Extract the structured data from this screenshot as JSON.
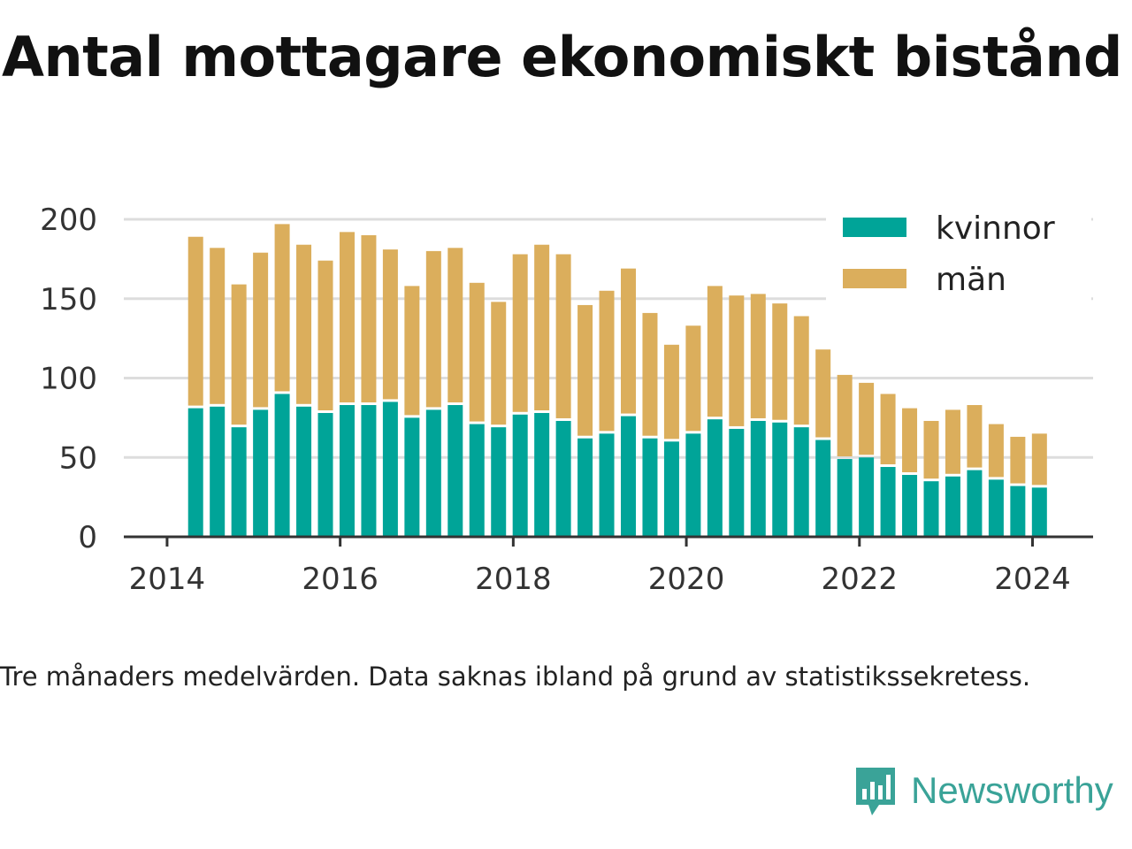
{
  "header": {
    "title": "Antal mottagare ekonomiskt bistånd"
  },
  "caption": "Tre månaders medelvärden. Data saknas ibland på grund av statistikssekretess.",
  "brand": {
    "name": "Newsworthy",
    "icon": "newsworthy-logo-icon",
    "color": "#3aa398"
  },
  "chart_data": {
    "type": "bar",
    "stacked": true,
    "xlabel": "",
    "ylabel": "",
    "ylim": [
      0,
      200
    ],
    "yticks": [
      0,
      50,
      100,
      150,
      200
    ],
    "xticks": [
      "2014",
      "2016",
      "2018",
      "2020",
      "2022",
      "2024"
    ],
    "xlim": [
      2013.5,
      2024.7
    ],
    "grid": true,
    "legend": "top-right",
    "x": [
      2014.33,
      2014.58,
      2014.83,
      2015.08,
      2015.33,
      2015.58,
      2015.83,
      2016.08,
      2016.33,
      2016.58,
      2016.83,
      2017.08,
      2017.33,
      2017.58,
      2017.83,
      2018.08,
      2018.33,
      2018.58,
      2018.83,
      2019.08,
      2019.33,
      2019.58,
      2019.83,
      2020.08,
      2020.33,
      2020.58,
      2020.83,
      2021.08,
      2021.33,
      2021.58,
      2021.83,
      2022.08,
      2022.33,
      2022.58,
      2022.83,
      2023.08,
      2023.33,
      2023.58,
      2023.83,
      2024.08
    ],
    "series": [
      {
        "name": "kvinnor",
        "color": "#00a498",
        "values": [
          81,
          82,
          69,
          80,
          90,
          82,
          78,
          83,
          83,
          85,
          75,
          80,
          83,
          71,
          69,
          77,
          78,
          73,
          62,
          65,
          76,
          62,
          60,
          65,
          74,
          68,
          73,
          72,
          69,
          61,
          49,
          50,
          44,
          39,
          35,
          38,
          42,
          36,
          32,
          31
        ]
      },
      {
        "name": "män",
        "color": "#dbae5c",
        "values": [
          108,
          100,
          90,
          99,
          107,
          102,
          96,
          109,
          107,
          96,
          83,
          100,
          99,
          89,
          79,
          101,
          106,
          105,
          84,
          90,
          93,
          79,
          61,
          68,
          84,
          84,
          80,
          75,
          70,
          57,
          53,
          47,
          46,
          42,
          38,
          42,
          41,
          35,
          31,
          34
        ]
      }
    ]
  }
}
